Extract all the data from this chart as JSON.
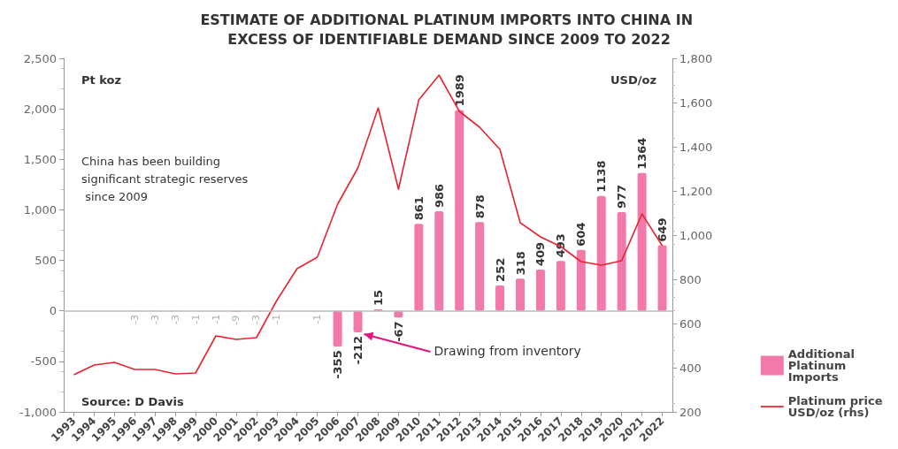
{
  "chart_data": {
    "type": "bar",
    "title": "ESTIMATE OF ADDITIONAL PLATINUM IMPORTS INTO CHINA IN EXCESS OF IDENTIFIABLE DEMAND SINCE 2009 TO 2022",
    "categories": [
      "1993",
      "1994",
      "1995",
      "1996",
      "1997",
      "1998",
      "1999",
      "2000",
      "2001",
      "2002",
      "2003",
      "2004",
      "2005",
      "2006",
      "2007",
      "2008",
      "2009",
      "2010",
      "2011",
      "2012",
      "2013",
      "2014",
      "2015",
      "2016",
      "2017",
      "2018",
      "2019",
      "2020",
      "2021",
      "2022"
    ],
    "ylabel": "Pt koz",
    "y2label": "USD/oz",
    "series": [
      {
        "name": "Additional Platinum Imports",
        "color": "#f27aab",
        "values": [
          null,
          null,
          null,
          -3,
          -3,
          -3,
          -1,
          -1,
          -9,
          -3,
          -1,
          null,
          -1,
          -355,
          -212,
          15,
          -67,
          861,
          986,
          1989,
          878,
          252,
          318,
          409,
          493,
          604,
          1138,
          977,
          1364,
          649
        ],
        "value_labels": [
          null,
          null,
          null,
          "-3",
          "-3",
          "-3",
          "-1",
          "-1",
          "-9",
          "-3",
          "-1",
          null,
          "-1",
          "-355",
          "-212",
          "15",
          "-67",
          "861",
          "986",
          "1989",
          "878",
          "252",
          "318",
          "409",
          "493",
          "604",
          "1138",
          "977",
          "1364",
          "649"
        ]
      },
      {
        "name": "Platinum price USD/oz (rhs)",
        "type": "line",
        "axis": "y2",
        "color": "#e8232f",
        "values": [
          368,
          412,
          424,
          392,
          392,
          372,
          376,
          544,
          528,
          536,
          704,
          848,
          900,
          1140,
          1304,
          1576,
          1208,
          1612,
          1724,
          1560,
          1488,
          1388,
          1056,
          992,
          948,
          880,
          864,
          884,
          1096,
          952
        ]
      }
    ],
    "ylim": [
      -1000,
      2500
    ],
    "yticks": [
      {
        "value": -1000,
        "label": "-1,000"
      },
      -500,
      0,
      500,
      {
        "value": 1000,
        "label": "1,000"
      },
      {
        "value": 1500,
        "label": "1,500"
      },
      {
        "value": 2000,
        "label": "2,000"
      },
      {
        "value": 2500,
        "label": "2,500"
      }
    ],
    "y2lim": [
      200,
      1800
    ],
    "y2ticks": [
      200,
      400,
      600,
      800,
      {
        "value": 1000,
        "label": "1,000"
      },
      {
        "value": 1200,
        "label": "1,200"
      },
      {
        "value": 1400,
        "label": "1,400"
      },
      {
        "value": 1600,
        "label": "1,600"
      },
      {
        "value": 1800,
        "label": "1,800"
      }
    ],
    "ref_lines": [
      {
        "axis": "y",
        "value": 0,
        "color": "#bbbbbb"
      }
    ],
    "annotations": [
      "China has been building significant strategic reserves since 2009",
      "Source: D Davis",
      {
        "text": "Drawing from inventory",
        "x": "2007",
        "y": -212
      }
    ],
    "legend": "bottom right",
    "grid": false,
    "marker": "none",
    "line_style": "solid"
  }
}
